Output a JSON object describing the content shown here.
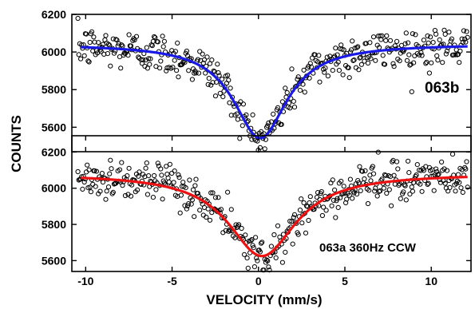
{
  "chart_data": [
    {
      "type": "scatter",
      "label": "063b",
      "xlabel": "VELOCITY (mm/s)",
      "ylabel": "COUNTS",
      "xlim": [
        -10.8,
        12.3
      ],
      "ylim": [
        5470,
        6200
      ],
      "x_ticks": [
        -10,
        -5,
        0,
        5,
        10
      ],
      "x_tick_labels": [
        "-10",
        "-5",
        "0",
        "5",
        "10"
      ],
      "y_ticks": [
        5600,
        5800,
        6000,
        6200
      ],
      "y_tick_labels": [
        "5600",
        "5800",
        "6000",
        "6200"
      ],
      "grid": false,
      "fit_color": "#1a1ae6",
      "fit": {
        "baseline": 6042,
        "depth": 500,
        "center": 0.1,
        "hwhm": 1.9
      },
      "noise_sd": 55,
      "n_points": 420
    },
    {
      "type": "scatter",
      "label": "063a 360Hz CCW",
      "xlabel": "VELOCITY (mm/s)",
      "ylabel": "COUNTS",
      "xlim": [
        -10.8,
        12.3
      ],
      "ylim": [
        5540,
        6290
      ],
      "x_ticks": [
        -10,
        -5,
        0,
        5,
        10
      ],
      "x_tick_labels": [
        "-10",
        "-5",
        "0",
        "5",
        "10"
      ],
      "y_ticks": [
        5600,
        5800,
        6000,
        6200
      ],
      "y_tick_labels": [
        "5600",
        "5800",
        "6000",
        "6200"
      ],
      "grid": false,
      "fit_color": "#ee1111",
      "fit": {
        "baseline": 6080,
        "depth": 455,
        "center": 0.2,
        "hwhm": 2.4
      },
      "noise_sd": 55,
      "n_points": 420
    }
  ]
}
